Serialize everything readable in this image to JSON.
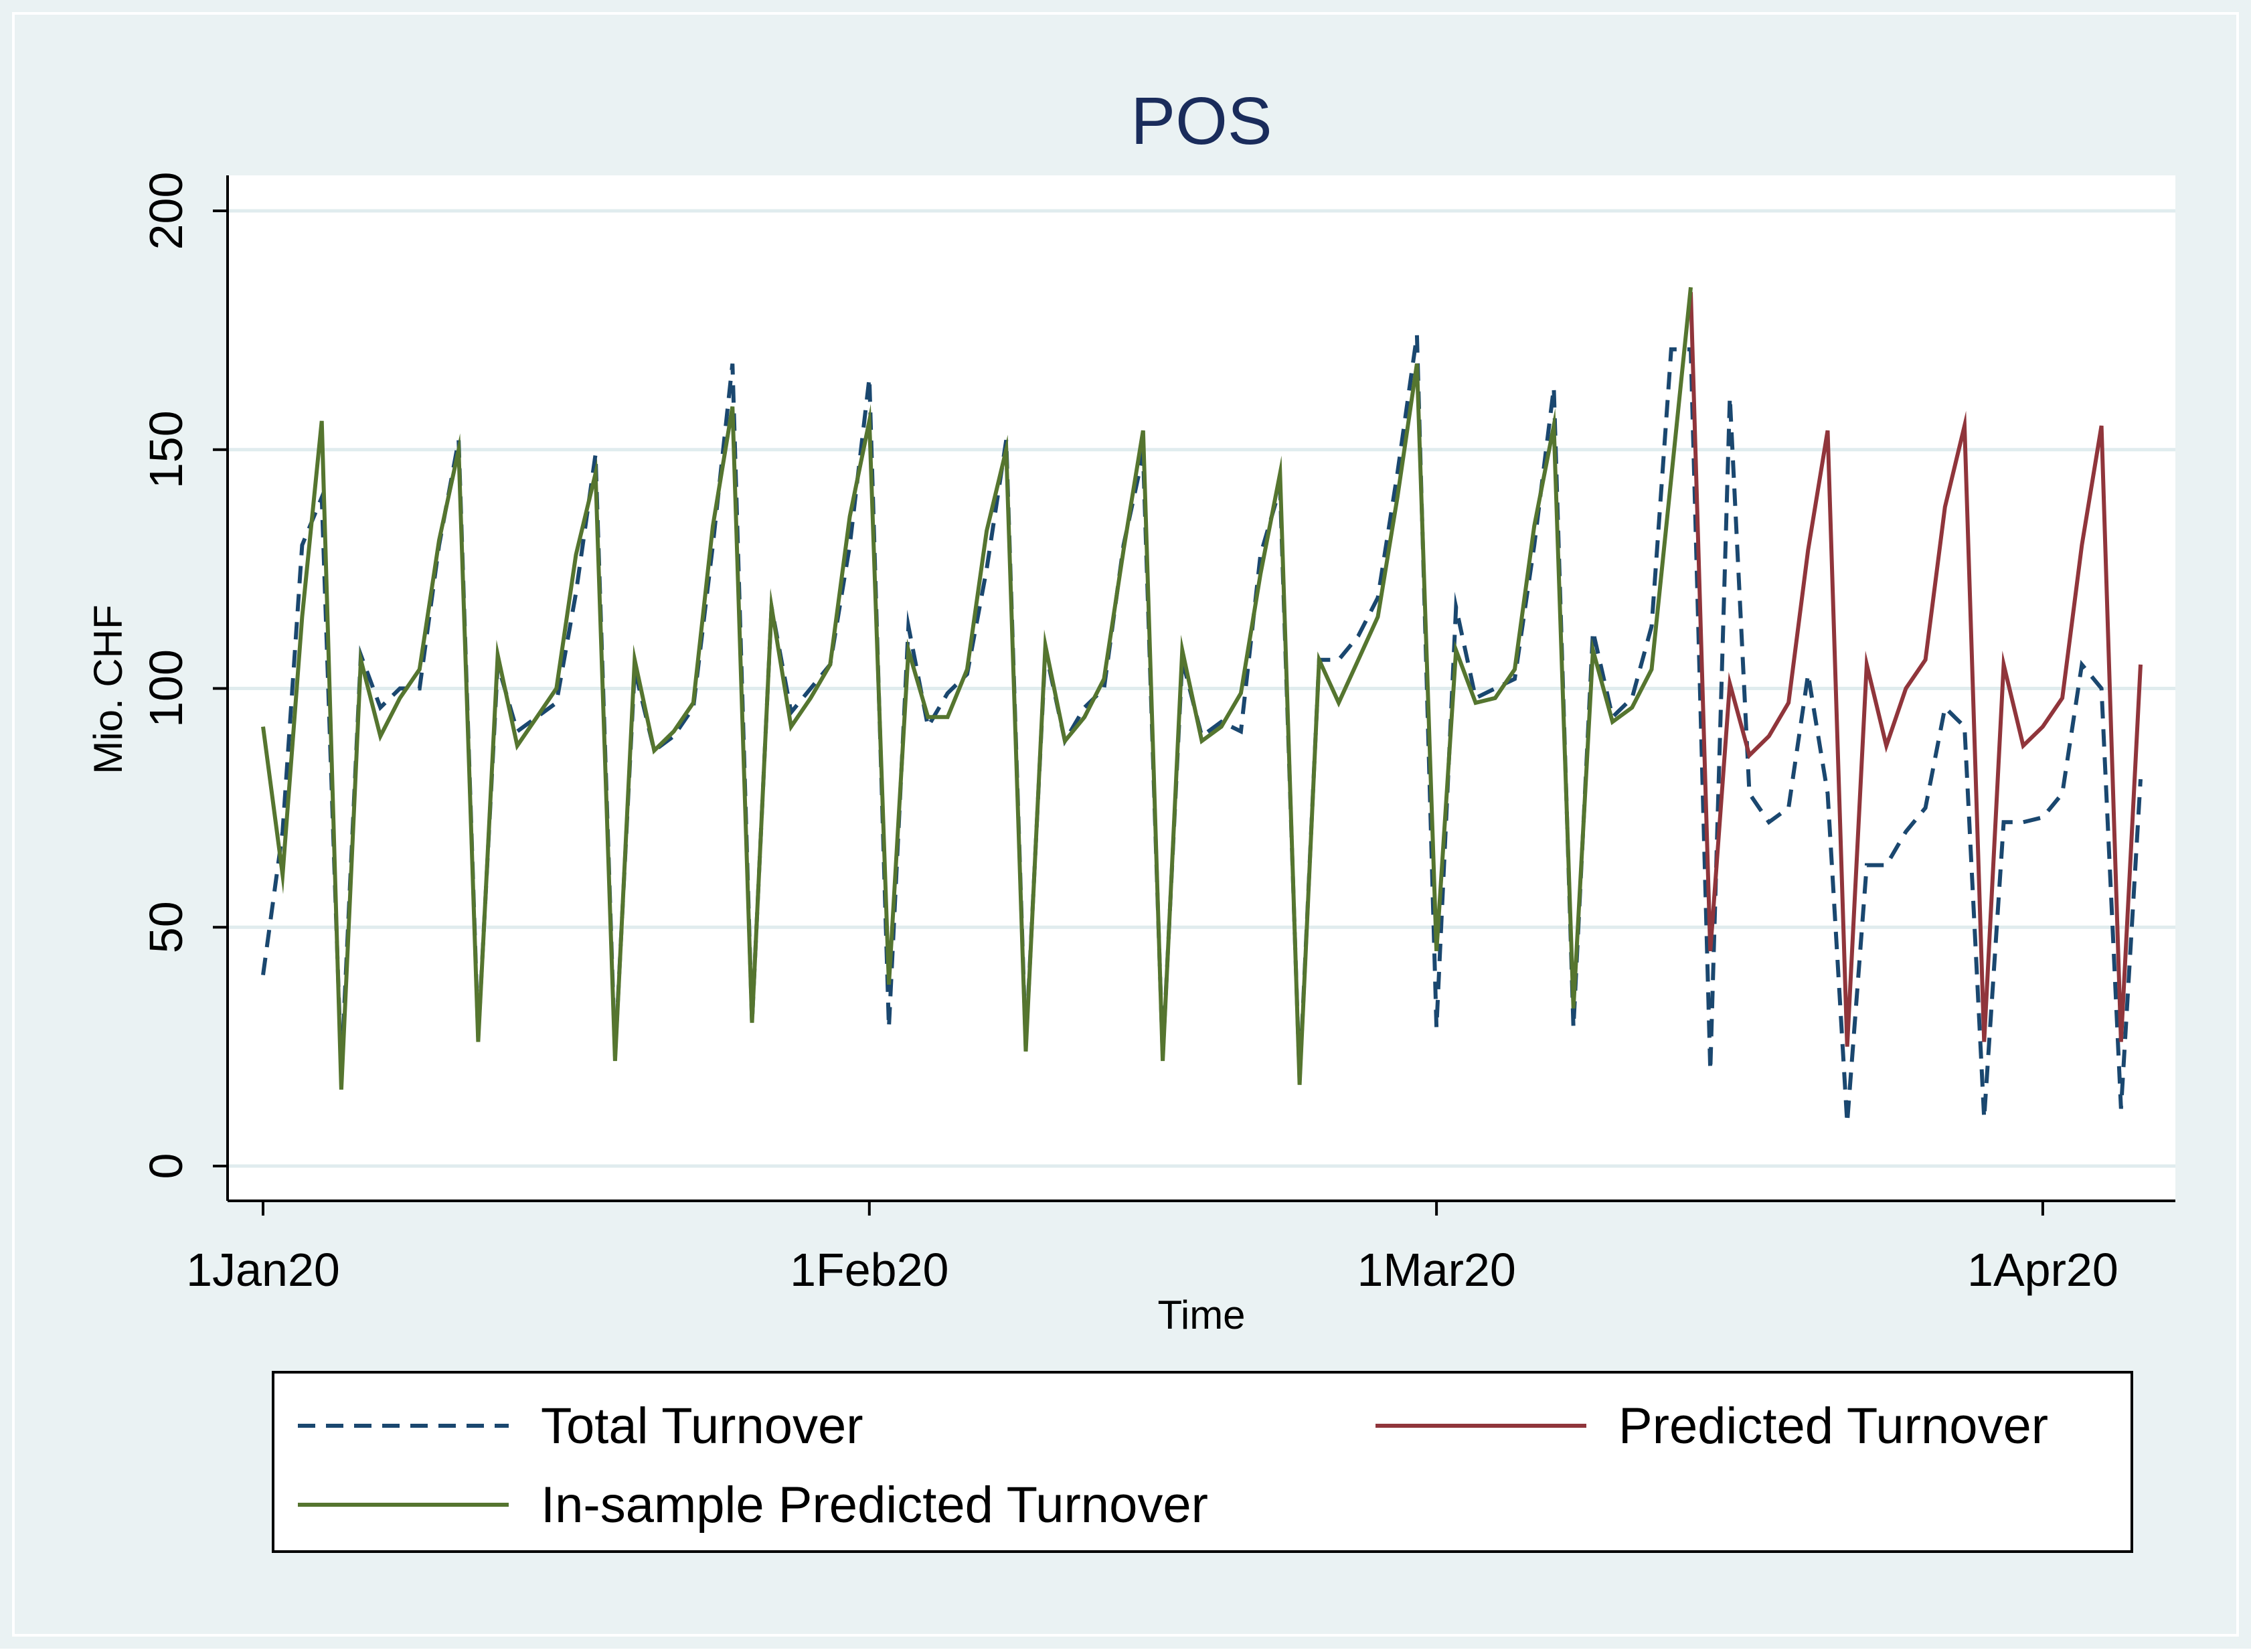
{
  "chart_data": {
    "type": "line",
    "title": "POS",
    "xlabel": "Time",
    "ylabel": "Mio. CHF",
    "xlim": [
      "2020-01-01",
      "2020-04-06"
    ],
    "ylim": [
      0,
      200
    ],
    "x_ticks": [
      {
        "label": "1Jan20",
        "date": "2020-01-01"
      },
      {
        "label": "1Feb20",
        "date": "2020-02-01"
      },
      {
        "label": "1Mar20",
        "date": "2020-03-01"
      },
      {
        "label": "1Apr20",
        "date": "2020-04-01"
      }
    ],
    "y_ticks": [
      0,
      50,
      100,
      150,
      200
    ],
    "grid": true,
    "legend": "bottom",
    "colors": {
      "outer_background": "#eaf2f3",
      "plot_background": "#ffffff",
      "grid": "#e0ecee",
      "axis": "#000000",
      "title": "#1a2c5b"
    },
    "series": [
      {
        "name": "Total Turnover",
        "style": "dashed",
        "color": "#1a476f",
        "points": [
          [
            "2020-01-01",
            40
          ],
          [
            "2020-01-02",
            70
          ],
          [
            "2020-01-03",
            130
          ],
          [
            "2020-01-04",
            140
          ],
          [
            "2020-01-05",
            20
          ],
          [
            "2020-01-06",
            107
          ],
          [
            "2020-01-07",
            96
          ],
          [
            "2020-01-08",
            100
          ],
          [
            "2020-01-09",
            100
          ],
          [
            "2020-01-10",
            130
          ],
          [
            "2020-01-11",
            152
          ],
          [
            "2020-01-12",
            27
          ],
          [
            "2020-01-13",
            105
          ],
          [
            "2020-01-14",
            91
          ],
          [
            "2020-01-15",
            94
          ],
          [
            "2020-01-16",
            97
          ],
          [
            "2020-01-17",
            120
          ],
          [
            "2020-01-18",
            149
          ],
          [
            "2020-01-19",
            23
          ],
          [
            "2020-01-20",
            104
          ],
          [
            "2020-01-21",
            87
          ],
          [
            "2020-01-22",
            90
          ],
          [
            "2020-01-23",
            96
          ],
          [
            "2020-01-24",
            130
          ],
          [
            "2020-01-25",
            168
          ],
          [
            "2020-01-26",
            30
          ],
          [
            "2020-01-27",
            117
          ],
          [
            "2020-01-28",
            95
          ],
          [
            "2020-01-29",
            100
          ],
          [
            "2020-01-30",
            105
          ],
          [
            "2020-01-31",
            130
          ],
          [
            "2020-02-01",
            165
          ],
          [
            "2020-02-02",
            29
          ],
          [
            "2020-02-03",
            113
          ],
          [
            "2020-02-04",
            92
          ],
          [
            "2020-02-05",
            99
          ],
          [
            "2020-02-06",
            103
          ],
          [
            "2020-02-07",
            125
          ],
          [
            "2020-02-08",
            152
          ],
          [
            "2020-02-09",
            25
          ],
          [
            "2020-02-10",
            108
          ],
          [
            "2020-02-11",
            89
          ],
          [
            "2020-02-12",
            96
          ],
          [
            "2020-02-13",
            100
          ],
          [
            "2020-02-14",
            130
          ],
          [
            "2020-02-15",
            149
          ],
          [
            "2020-02-16",
            23
          ],
          [
            "2020-02-17",
            106
          ],
          [
            "2020-02-18",
            90
          ],
          [
            "2020-02-19",
            93
          ],
          [
            "2020-02-20",
            91
          ],
          [
            "2020-02-21",
            128
          ],
          [
            "2020-02-22",
            142
          ],
          [
            "2020-02-23",
            18
          ],
          [
            "2020-02-24",
            106
          ],
          [
            "2020-02-25",
            106
          ],
          [
            "2020-02-26",
            111
          ],
          [
            "2020-02-27",
            119
          ],
          [
            "2020-02-28",
            145
          ],
          [
            "2020-02-29",
            174
          ],
          [
            "2020-03-01",
            29
          ],
          [
            "2020-03-02",
            117
          ],
          [
            "2020-03-03",
            98
          ],
          [
            "2020-03-04",
            100
          ],
          [
            "2020-03-05",
            102
          ],
          [
            "2020-03-06",
            130
          ],
          [
            "2020-03-07",
            163
          ],
          [
            "2020-03-08",
            29
          ],
          [
            "2020-03-09",
            112
          ],
          [
            "2020-03-10",
            94
          ],
          [
            "2020-03-11",
            98
          ],
          [
            "2020-03-12",
            113
          ],
          [
            "2020-03-13",
            171
          ],
          [
            "2020-03-14",
            171
          ],
          [
            "2020-03-15",
            20
          ],
          [
            "2020-03-16",
            161
          ],
          [
            "2020-03-17",
            78
          ],
          [
            "2020-03-18",
            72
          ],
          [
            "2020-03-19",
            75
          ],
          [
            "2020-03-20",
            103
          ],
          [
            "2020-03-21",
            78
          ],
          [
            "2020-03-22",
            9
          ],
          [
            "2020-03-23",
            63
          ],
          [
            "2020-03-24",
            63
          ],
          [
            "2020-03-25",
            70
          ],
          [
            "2020-03-26",
            75
          ],
          [
            "2020-03-27",
            96
          ],
          [
            "2020-03-28",
            92
          ],
          [
            "2020-03-29",
            10
          ],
          [
            "2020-03-30",
            72
          ],
          [
            "2020-03-31",
            72
          ],
          [
            "2020-04-01",
            73
          ],
          [
            "2020-04-02",
            78
          ],
          [
            "2020-04-03",
            105
          ],
          [
            "2020-04-04",
            100
          ],
          [
            "2020-04-05",
            12
          ],
          [
            "2020-04-06",
            81
          ]
        ]
      },
      {
        "name": "Predicted Turnover",
        "style": "solid",
        "color": "#90353b",
        "points": [
          [
            "2020-03-14",
            183
          ],
          [
            "2020-03-15",
            45
          ],
          [
            "2020-03-16",
            101
          ],
          [
            "2020-03-17",
            86
          ],
          [
            "2020-03-18",
            90
          ],
          [
            "2020-03-19",
            97
          ],
          [
            "2020-03-20",
            129
          ],
          [
            "2020-03-21",
            154
          ],
          [
            "2020-03-22",
            25
          ],
          [
            "2020-03-23",
            105
          ],
          [
            "2020-03-24",
            88
          ],
          [
            "2020-03-25",
            100
          ],
          [
            "2020-03-26",
            106
          ],
          [
            "2020-03-27",
            138
          ],
          [
            "2020-03-28",
            155
          ],
          [
            "2020-03-29",
            26
          ],
          [
            "2020-03-30",
            105
          ],
          [
            "2020-03-31",
            88
          ],
          [
            "2020-04-01",
            92
          ],
          [
            "2020-04-02",
            98
          ],
          [
            "2020-04-03",
            130
          ],
          [
            "2020-04-04",
            155
          ],
          [
            "2020-04-05",
            26
          ],
          [
            "2020-04-06",
            105
          ]
        ]
      },
      {
        "name": "In-sample Predicted Turnover",
        "style": "solid",
        "color": "#55752f",
        "points": [
          [
            "2020-01-01",
            92
          ],
          [
            "2020-01-02",
            61
          ],
          [
            "2020-01-03",
            115
          ],
          [
            "2020-01-04",
            156
          ],
          [
            "2020-01-05",
            16
          ],
          [
            "2020-01-06",
            106
          ],
          [
            "2020-01-07",
            90
          ],
          [
            "2020-01-08",
            98
          ],
          [
            "2020-01-09",
            104
          ],
          [
            "2020-01-10",
            131
          ],
          [
            "2020-01-11",
            150
          ],
          [
            "2020-01-12",
            26
          ],
          [
            "2020-01-13",
            107
          ],
          [
            "2020-01-14",
            88
          ],
          [
            "2020-01-15",
            94
          ],
          [
            "2020-01-16",
            100
          ],
          [
            "2020-01-17",
            128
          ],
          [
            "2020-01-18",
            145
          ],
          [
            "2020-01-19",
            22
          ],
          [
            "2020-01-20",
            106
          ],
          [
            "2020-01-21",
            87
          ],
          [
            "2020-01-22",
            91
          ],
          [
            "2020-01-23",
            97
          ],
          [
            "2020-01-24",
            134
          ],
          [
            "2020-01-25",
            159
          ],
          [
            "2020-01-26",
            30
          ],
          [
            "2020-01-27",
            117
          ],
          [
            "2020-01-28",
            92
          ],
          [
            "2020-01-29",
            98
          ],
          [
            "2020-01-30",
            105
          ],
          [
            "2020-01-31",
            136
          ],
          [
            "2020-02-01",
            156
          ],
          [
            "2020-02-02",
            38
          ],
          [
            "2020-02-03",
            108
          ],
          [
            "2020-02-04",
            94
          ],
          [
            "2020-02-05",
            94
          ],
          [
            "2020-02-06",
            104
          ],
          [
            "2020-02-07",
            133
          ],
          [
            "2020-02-08",
            150
          ],
          [
            "2020-02-09",
            24
          ],
          [
            "2020-02-10",
            109
          ],
          [
            "2020-02-11",
            89
          ],
          [
            "2020-02-12",
            94
          ],
          [
            "2020-02-13",
            102
          ],
          [
            "2020-02-14",
            129
          ],
          [
            "2020-02-15",
            154
          ],
          [
            "2020-02-16",
            22
          ],
          [
            "2020-02-17",
            108
          ],
          [
            "2020-02-18",
            89
          ],
          [
            "2020-02-19",
            92
          ],
          [
            "2020-02-20",
            99
          ],
          [
            "2020-02-21",
            124
          ],
          [
            "2020-02-22",
            145
          ],
          [
            "2020-02-23",
            17
          ],
          [
            "2020-02-24",
            106
          ],
          [
            "2020-02-25",
            97
          ],
          [
            "2020-02-26",
            106
          ],
          [
            "2020-02-27",
            115
          ],
          [
            "2020-02-28",
            140
          ],
          [
            "2020-02-29",
            168
          ],
          [
            "2020-03-01",
            45
          ],
          [
            "2020-03-02",
            108
          ],
          [
            "2020-03-03",
            97
          ],
          [
            "2020-03-04",
            98
          ],
          [
            "2020-03-05",
            104
          ],
          [
            "2020-03-06",
            134
          ],
          [
            "2020-03-07",
            155
          ],
          [
            "2020-03-08",
            33
          ],
          [
            "2020-03-09",
            108
          ],
          [
            "2020-03-10",
            93
          ],
          [
            "2020-03-11",
            96
          ],
          [
            "2020-03-12",
            104
          ],
          [
            "2020-03-13",
            144
          ],
          [
            "2020-03-14",
            184
          ]
        ]
      }
    ],
    "legend_layout": [
      [
        "Total Turnover",
        "Predicted Turnover"
      ],
      [
        "In-sample Predicted Turnover"
      ]
    ]
  }
}
